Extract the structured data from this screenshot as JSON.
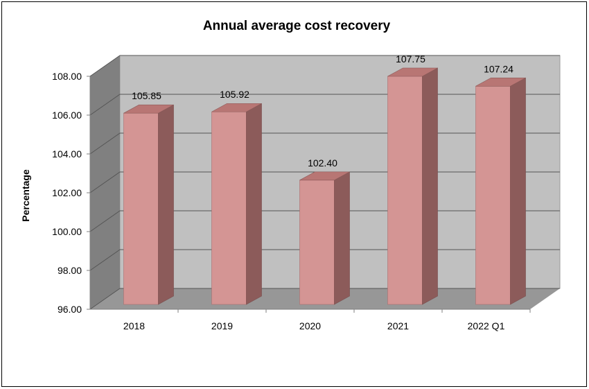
{
  "chart_data": {
    "type": "bar",
    "title": "Annual average cost recovery",
    "xlabel": "",
    "ylabel": "Percentage",
    "categories": [
      "2018",
      "2019",
      "2020",
      "2021",
      "2022 Q1"
    ],
    "values": [
      105.85,
      105.92,
      102.4,
      107.75,
      107.24
    ],
    "value_labels": [
      "105.85",
      "105.92",
      "102.40",
      "107.75",
      "107.24"
    ],
    "ylim": [
      96,
      108
    ],
    "yticks": [
      "96.00",
      "98.00",
      "100.00",
      "102.00",
      "104.00",
      "106.00",
      "108.00"
    ],
    "grid": true,
    "legend": "none",
    "style": "3d-column",
    "colors": {
      "bar_front": "#d49594",
      "bar_side": "#8c5b5a",
      "bar_top": "#b87674",
      "wall_back": "#c0c0c0",
      "wall_side": "#808080",
      "floor": "#979797"
    }
  }
}
